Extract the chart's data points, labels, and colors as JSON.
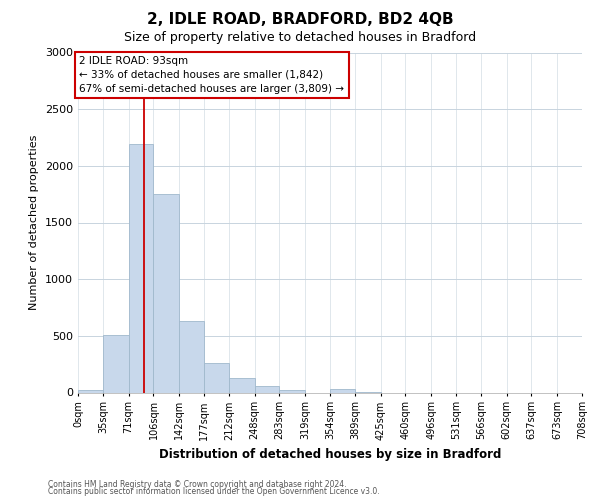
{
  "title": "2, IDLE ROAD, BRADFORD, BD2 4QB",
  "subtitle": "Size of property relative to detached houses in Bradford",
  "xlabel": "Distribution of detached houses by size in Bradford",
  "ylabel": "Number of detached properties",
  "bar_color": "#c8d8eb",
  "bar_edge_color": "#a0b8cc",
  "vline_color": "#cc0000",
  "vline_x": 93,
  "bin_edges": [
    0,
    35,
    71,
    106,
    142,
    177,
    212,
    248,
    283,
    319,
    354,
    389,
    425,
    460,
    496,
    531,
    566,
    602,
    637,
    673,
    708
  ],
  "bar_heights": [
    20,
    510,
    2190,
    1750,
    630,
    260,
    130,
    60,
    18,
    0,
    30,
    5,
    0,
    0,
    0,
    0,
    0,
    0,
    0,
    0
  ],
  "tick_labels": [
    "0sqm",
    "35sqm",
    "71sqm",
    "106sqm",
    "142sqm",
    "177sqm",
    "212sqm",
    "248sqm",
    "283sqm",
    "319sqm",
    "354sqm",
    "389sqm",
    "425sqm",
    "460sqm",
    "496sqm",
    "531sqm",
    "566sqm",
    "602sqm",
    "637sqm",
    "673sqm",
    "708sqm"
  ],
  "ylim": [
    0,
    3000
  ],
  "yticks": [
    0,
    500,
    1000,
    1500,
    2000,
    2500,
    3000
  ],
  "annotation_line1": "2 IDLE ROAD: 93sqm",
  "annotation_line2": "← 33% of detached houses are smaller (1,842)",
  "annotation_line3": "67% of semi-detached houses are larger (3,809) →",
  "footnote1": "Contains HM Land Registry data © Crown copyright and database right 2024.",
  "footnote2": "Contains public sector information licensed under the Open Government Licence v3.0.",
  "background_color": "#ffffff",
  "grid_color": "#c8d4de",
  "annotation_box_color": "#ffffff",
  "annotation_box_edge_color": "#cc0000"
}
